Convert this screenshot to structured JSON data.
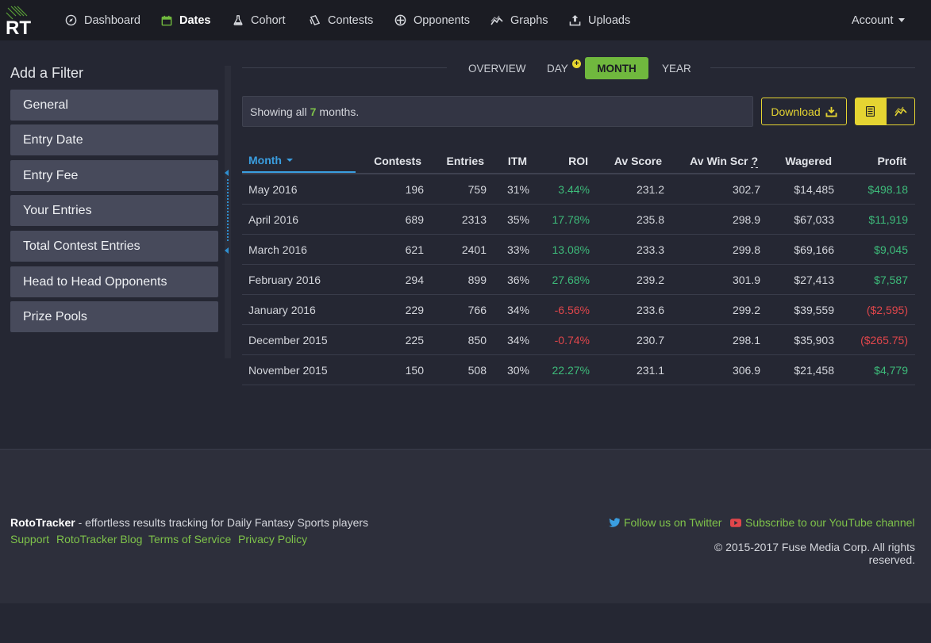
{
  "brand": {
    "logo_text": "RT"
  },
  "nav": {
    "items": [
      {
        "label": "Dashboard",
        "icon": "compass-icon"
      },
      {
        "label": "Dates",
        "icon": "calendar-icon"
      },
      {
        "label": "Cohort",
        "icon": "flask-icon"
      },
      {
        "label": "Contests",
        "icon": "clipboard-icon"
      },
      {
        "label": "Opponents",
        "icon": "crosshair-icon"
      },
      {
        "label": "Graphs",
        "icon": "line-chart-icon"
      },
      {
        "label": "Uploads",
        "icon": "upload-icon"
      }
    ],
    "active": "Dates",
    "account_label": "Account"
  },
  "sidebar": {
    "title": "Add a Filter",
    "filters": [
      "General",
      "Entry Date",
      "Entry Fee",
      "Your Entries",
      "Total Contest Entries",
      "Head to Head Opponents",
      "Prize Pools"
    ]
  },
  "view_tabs": {
    "overview": "OVERVIEW",
    "day": "DAY",
    "month": "MONTH",
    "year": "YEAR",
    "day_badge": "+",
    "active": "MONTH"
  },
  "info": {
    "prefix": "Showing all",
    "count": "7",
    "suffix": "months."
  },
  "toolbar": {
    "download_label": "Download"
  },
  "table": {
    "headers": {
      "month": "Month",
      "contests": "Contests",
      "entries": "Entries",
      "itm": "ITM",
      "roi": "ROI",
      "av_score": "Av Score",
      "av_win_scr": "Av Win Scr",
      "av_win_scr_help": "?",
      "wagered": "Wagered",
      "profit": "Profit"
    },
    "sorted_by": "Month",
    "rows": [
      {
        "month": "May 2016",
        "contests": "196",
        "entries": "759",
        "itm": "31%",
        "roi": "3.44%",
        "av_score": "231.2",
        "av_win_scr": "302.7",
        "wagered": "$14,485",
        "profit": "$498.18",
        "positive": true
      },
      {
        "month": "April 2016",
        "contests": "689",
        "entries": "2313",
        "itm": "35%",
        "roi": "17.78%",
        "av_score": "235.8",
        "av_win_scr": "298.9",
        "wagered": "$67,033",
        "profit": "$11,919",
        "positive": true
      },
      {
        "month": "March 2016",
        "contests": "621",
        "entries": "2401",
        "itm": "33%",
        "roi": "13.08%",
        "av_score": "233.3",
        "av_win_scr": "299.8",
        "wagered": "$69,166",
        "profit": "$9,045",
        "positive": true
      },
      {
        "month": "February 2016",
        "contests": "294",
        "entries": "899",
        "itm": "36%",
        "roi": "27.68%",
        "av_score": "239.2",
        "av_win_scr": "301.9",
        "wagered": "$27,413",
        "profit": "$7,587",
        "positive": true
      },
      {
        "month": "January 2016",
        "contests": "229",
        "entries": "766",
        "itm": "34%",
        "roi": "-6.56%",
        "av_score": "233.6",
        "av_win_scr": "299.2",
        "wagered": "$39,559",
        "profit": "($2,595)",
        "positive": false
      },
      {
        "month": "December 2015",
        "contests": "225",
        "entries": "850",
        "itm": "34%",
        "roi": "-0.74%",
        "av_score": "230.7",
        "av_win_scr": "298.1",
        "wagered": "$35,903",
        "profit": "($265.75)",
        "positive": false
      },
      {
        "month": "November 2015",
        "contests": "150",
        "entries": "508",
        "itm": "30%",
        "roi": "22.27%",
        "av_score": "231.1",
        "av_win_scr": "306.9",
        "wagered": "$21,458",
        "profit": "$4,779",
        "positive": true
      }
    ]
  },
  "footer": {
    "brand_name": "RotoTracker",
    "tagline": " - effortless results tracking for Daily Fantasy Sports players",
    "links": [
      "Support",
      "RotoTracker Blog",
      "Terms of Service",
      "Privacy Policy"
    ],
    "twitter_label": "Follow us on Twitter",
    "youtube_label": "Subscribe to our YouTube channel",
    "copyright": "© 2015-2017 Fuse Media Corp. All rights reserved."
  },
  "colors": {
    "accent_green": "#70b83e",
    "accent_yellow": "#e5d432",
    "accent_blue": "#3a9ee0",
    "positive": "#3dbb7a",
    "negative": "#e0464b"
  }
}
